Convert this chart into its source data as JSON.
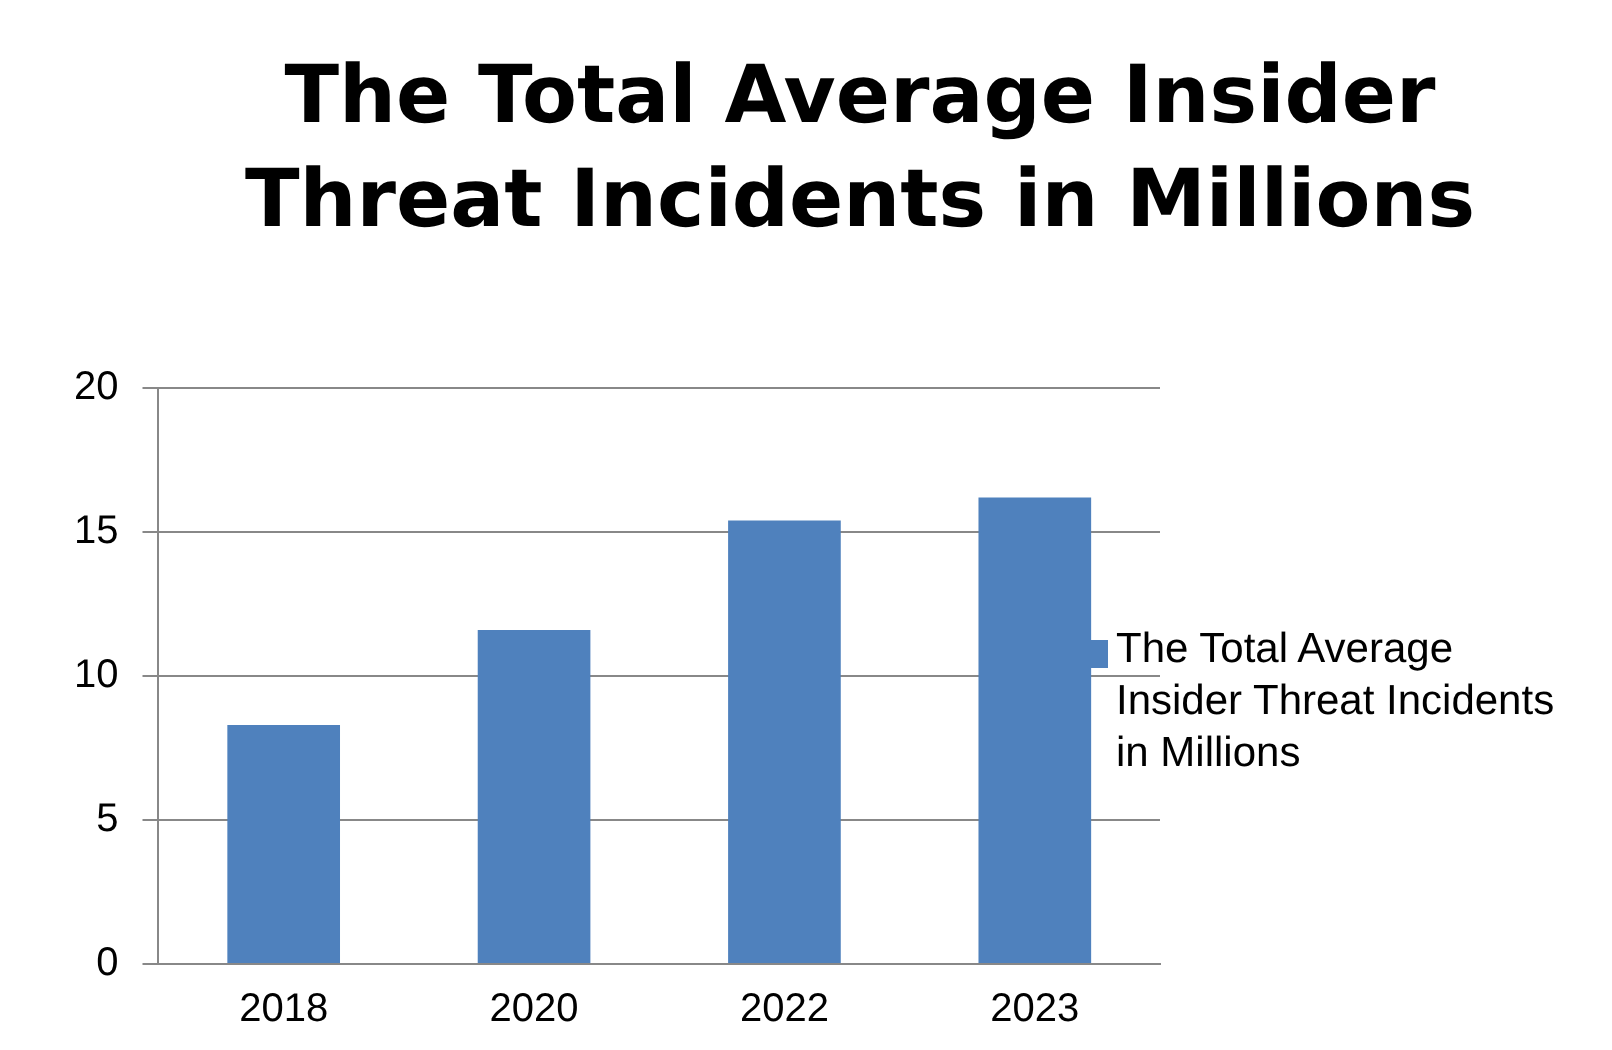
{
  "chart_data": {
    "type": "bar",
    "title": "The Total Average Insider Threat Incidents in Millions",
    "categories": [
      "2018",
      "2020",
      "2022",
      "2023"
    ],
    "series": [
      {
        "name": "The Total Average Insider Threat Incidents in Millions",
        "color": "#4f81bd",
        "values": [
          8.3,
          11.6,
          15.4,
          16.2
        ]
      }
    ],
    "ylim": [
      0,
      20
    ],
    "yticks": [
      0,
      5,
      10,
      15,
      20
    ],
    "grid": "y",
    "legend": "right"
  }
}
